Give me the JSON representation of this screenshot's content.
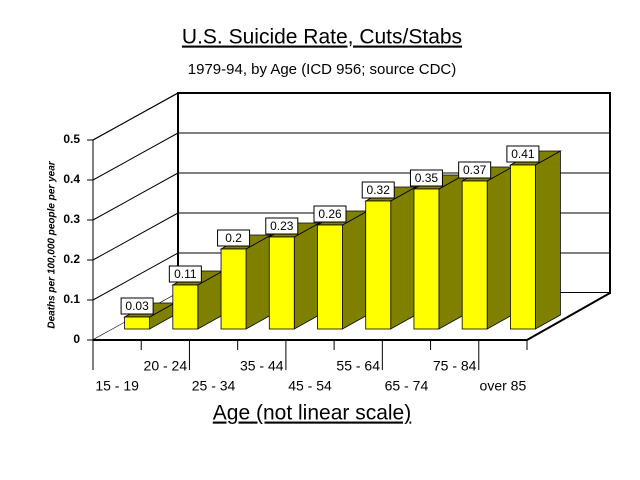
{
  "chart_data": {
    "type": "bar3d",
    "title": "U.S. Suicide Rate, Cuts/Stabs",
    "subtitle": "1979-94, by Age (ICD 956; source CDC)",
    "y_label": "Deaths per 100,000 people per year",
    "x_label": "Age (not linear scale)",
    "categories": [
      "15 - 19",
      "20 - 24",
      "25 - 34",
      "35 - 44",
      "45 - 54",
      "55 - 64",
      "65 - 74",
      "75 - 84",
      "over 85"
    ],
    "values": [
      0.03,
      0.11,
      0.2,
      0.23,
      0.26,
      0.32,
      0.35,
      0.37,
      0.41
    ],
    "color": "#ffff00",
    "side_color": "#808000",
    "ylim": [
      0,
      0.5
    ],
    "yticks": [
      0,
      0.1,
      0.2,
      0.3,
      0.4,
      0.5
    ],
    "grid": true
  }
}
